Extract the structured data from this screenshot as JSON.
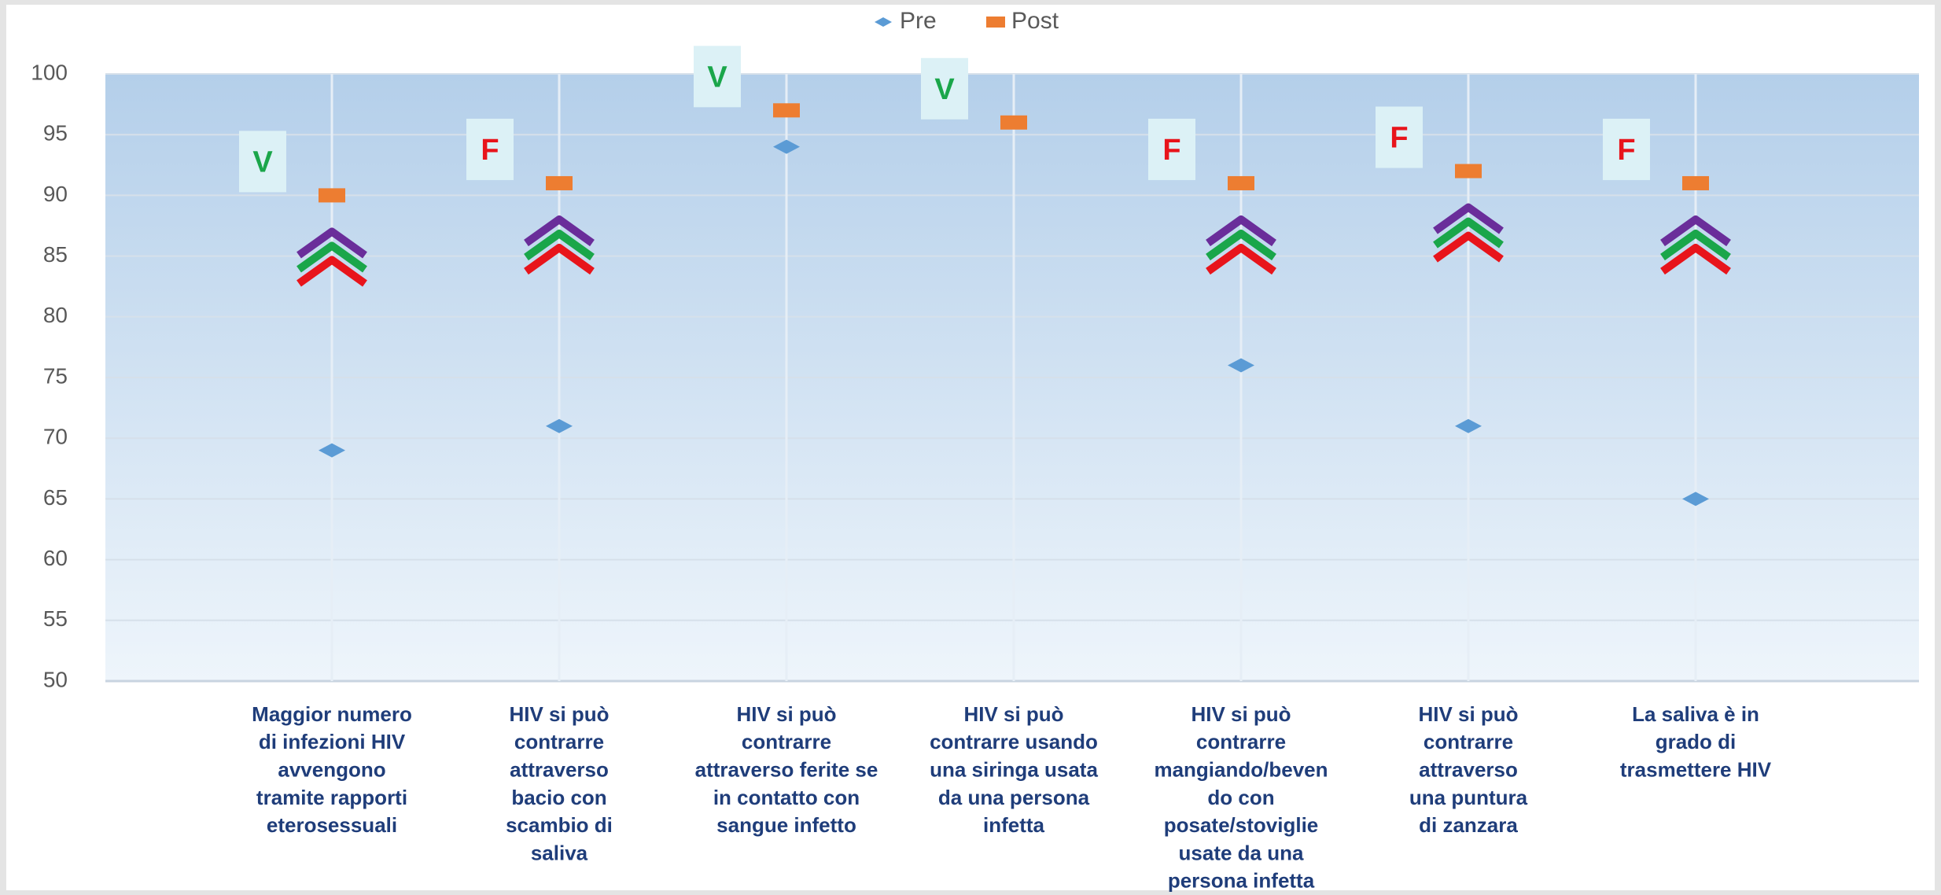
{
  "chart_data": {
    "type": "dot-comparison",
    "categories": [
      [
        "Maggior numero",
        "di infezioni HIV",
        "avvengono",
        "tramite rapporti",
        "eterosessuali"
      ],
      [
        "HIV si può",
        "contrarre",
        "attraverso",
        "bacio con",
        "scambio di",
        "saliva"
      ],
      [
        "HIV si può",
        "contrarre",
        "attraverso ferite se",
        "in contatto con",
        "sangue infetto"
      ],
      [
        "HIV si può",
        "contrarre usando",
        "una siringa usata",
        "da una persona",
        "infetta"
      ],
      [
        "HIV si può",
        "contrarre",
        "mangiando/beven",
        "do con",
        "posate/stoviglie",
        "usate da una",
        "persona infetta"
      ],
      [
        "HIV si può",
        "contrarre",
        "attraverso",
        "una puntura",
        "di zanzara"
      ],
      [
        "La saliva è in",
        "grado di",
        "trasmettere HIV"
      ]
    ],
    "series": [
      {
        "name": "Pre",
        "color": "#5b9bd5",
        "values": [
          69,
          71,
          94,
          96,
          76,
          71,
          65
        ]
      },
      {
        "name": "Post",
        "color": "#ed7d31",
        "values": [
          90,
          91,
          97,
          96,
          91,
          92,
          91
        ]
      }
    ],
    "annotations": [
      "V",
      "F",
      "V",
      "V",
      "F",
      "F",
      "F"
    ],
    "annotation_colors": {
      "V": "#1aa64a",
      "F": "#e8141b"
    },
    "ylim": [
      50,
      100
    ],
    "yticks": [
      50,
      55,
      60,
      65,
      70,
      75,
      80,
      85,
      90,
      95,
      100
    ],
    "grid": true,
    "legend": "top"
  }
}
